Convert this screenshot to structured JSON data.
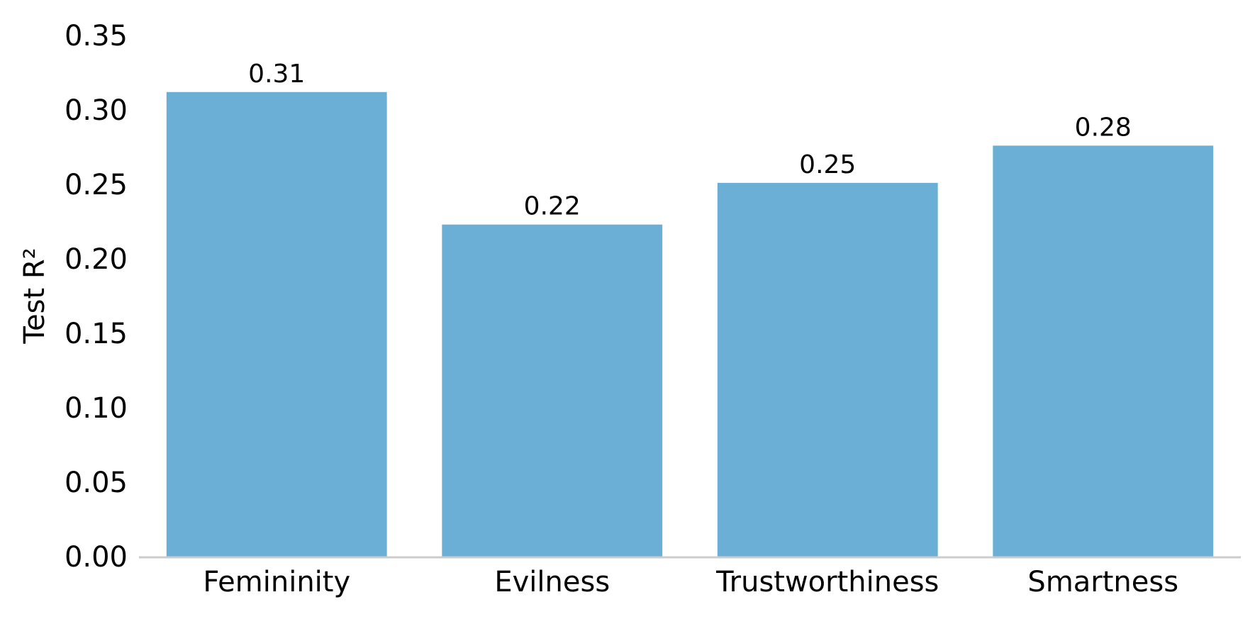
{
  "chart_data": {
    "type": "bar",
    "title": "",
    "xlabel": "",
    "ylabel": "Test R²",
    "categories": [
      "Femininity",
      "Evilness",
      "Trustworthiness",
      "Smartness"
    ],
    "values": [
      0.312,
      0.223,
      0.251,
      0.276
    ],
    "data_labels": [
      "0.31",
      "0.22",
      "0.25",
      "0.28"
    ],
    "ylim": [
      0,
      0.35
    ],
    "yticks": [
      "0.00",
      "0.05",
      "0.10",
      "0.15",
      "0.20",
      "0.25",
      "0.30",
      "0.35"
    ],
    "grid": false,
    "legend": "none",
    "colors": {
      "bar": "#6baed6",
      "baseline": "#cccccc"
    }
  }
}
